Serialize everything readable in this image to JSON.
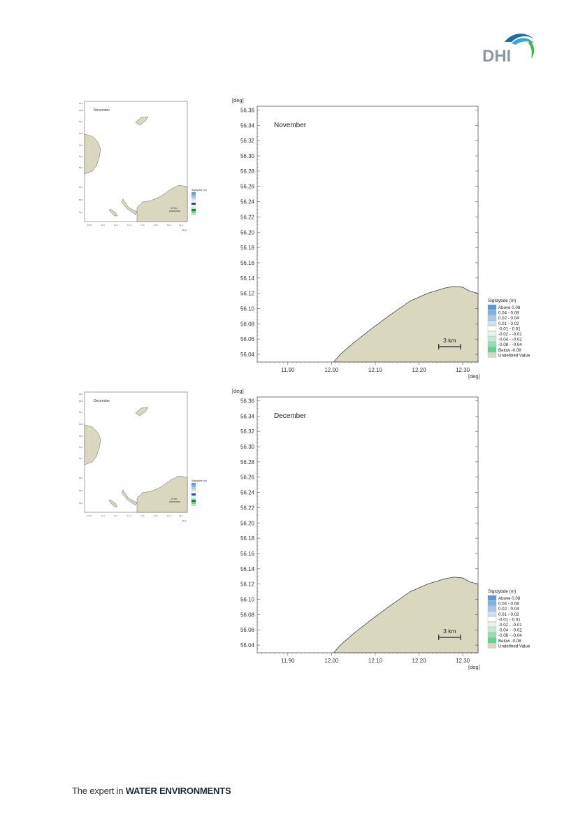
{
  "logo": {
    "text": "DHI",
    "colors": {
      "text": "#8a9aa3",
      "wave_dark": "#1b6fa6",
      "wave_mid": "#2ea8d6",
      "wave_green": "#43b649"
    }
  },
  "footer": {
    "prefix": "The expert in",
    "bold": "WATER ENVIRONMENTS"
  },
  "colors": {
    "land": "#d9d8bf",
    "land_edge": "#444444",
    "frame": "#555555"
  },
  "legend": {
    "title": "Sigtdybde (m)",
    "items": [
      {
        "label": "Above  0.08",
        "color": "#5b9bd5"
      },
      {
        "label": "0.04 -  0.08",
        "color": "#7fb2e0"
      },
      {
        "label": "0.02 -  0.04",
        "color": "#a6c9ea"
      },
      {
        "label": "0.01 -  0.02",
        "color": "#cfe0f3"
      },
      {
        "label": "-0.01 -  0.01",
        "color": "#ffffff"
      },
      {
        "label": "-0.02 - -0.01",
        "color": "#e4f6ea"
      },
      {
        "label": "-0.04 - -0.02",
        "color": "#c0ecd0"
      },
      {
        "label": "-0.08 - -0.04",
        "color": "#8fe0b0"
      },
      {
        "label": "Below -0.08",
        "color": "#57d98c"
      },
      {
        "label": "Undefined Value",
        "color": "#d9d8bf"
      }
    ]
  },
  "chart_data": [
    {
      "type": "area",
      "title": "November",
      "xlabel": "[deg]",
      "ylabel": "[deg]",
      "xlim": [
        11.83,
        12.335
      ],
      "ylim": [
        56.03,
        56.365
      ],
      "x_ticks": [
        "11.90",
        "12.00",
        "12.10",
        "12.20",
        "12.30"
      ],
      "y_ticks": [
        "56.36",
        "56.34",
        "56.32",
        "56.30",
        "56.28",
        "56.26",
        "56.24",
        "56.22",
        "56.20",
        "56.18",
        "56.16",
        "56.14",
        "56.12",
        "56.10",
        "56.08",
        "56.06",
        "56.04"
      ],
      "scalebar": "3 km",
      "coastline": {
        "x": [
          12.005,
          12.02,
          12.05,
          12.09,
          12.13,
          12.18,
          12.22,
          12.26,
          12.28,
          12.3,
          12.315,
          12.335
        ],
        "y": [
          56.03,
          56.04,
          56.055,
          56.073,
          56.09,
          56.11,
          56.12,
          56.127,
          56.129,
          56.128,
          56.123,
          56.12
        ]
      }
    },
    {
      "type": "area",
      "title": "December",
      "xlabel": "[deg]",
      "ylabel": "[deg]",
      "xlim": [
        11.83,
        12.335
      ],
      "ylim": [
        56.03,
        56.365
      ],
      "x_ticks": [
        "11.90",
        "12.00",
        "12.10",
        "12.20",
        "12.30"
      ],
      "y_ticks": [
        "56.36",
        "56.34",
        "56.32",
        "56.30",
        "56.28",
        "56.26",
        "56.24",
        "56.22",
        "56.20",
        "56.18",
        "56.16",
        "56.14",
        "56.12",
        "56.10",
        "56.08",
        "56.06",
        "56.04"
      ],
      "scalebar": "3 km",
      "coastline": {
        "x": [
          12.005,
          12.02,
          12.05,
          12.09,
          12.13,
          12.18,
          12.22,
          12.26,
          12.28,
          12.3,
          12.315,
          12.335
        ],
        "y": [
          56.03,
          56.04,
          56.055,
          56.073,
          56.09,
          56.11,
          56.12,
          56.127,
          56.129,
          56.128,
          56.123,
          56.12
        ]
      }
    }
  ],
  "thumbnails": [
    {
      "title": "November",
      "legend_title": "Sigtdybde (m)",
      "scalebar": "10 km"
    },
    {
      "title": "December",
      "legend_title": "Sigtdybde (m)",
      "scalebar": "10 km"
    }
  ]
}
